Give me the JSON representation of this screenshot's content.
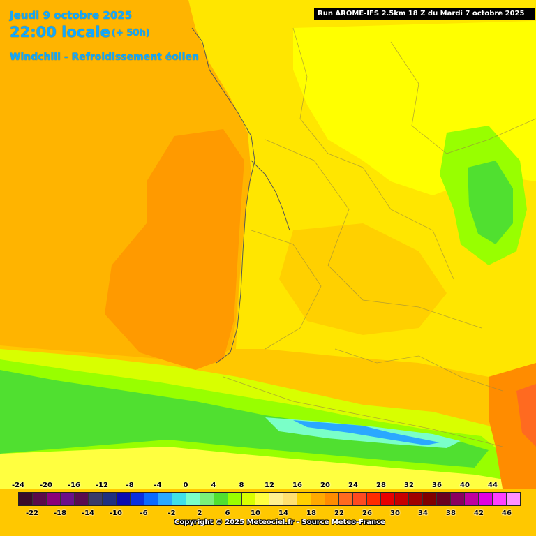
{
  "header": {
    "date": "Jeudi 9 octobre 2025",
    "time": "22:00 locale",
    "offset": "(+ 50h)",
    "parameter": "Windchill - Refroidissement éolien"
  },
  "run_info": "Run AROME-IFS 2.5km 18 Z du Mardi 7 octobre 2025",
  "legend": {
    "ticks_top": [
      "-24",
      "-20",
      "-16",
      "-12",
      "-8",
      "-4",
      "0",
      "4",
      "8",
      "12",
      "16",
      "20",
      "24",
      "28",
      "32",
      "36",
      "40",
      "44"
    ],
    "ticks_bottom": [
      "-22",
      "-18",
      "-14",
      "-10",
      "-6",
      "-2",
      "2",
      "6",
      "10",
      "14",
      "18",
      "22",
      "26",
      "30",
      "34",
      "38",
      "42",
      "46"
    ],
    "colors": [
      "#3a0a2a",
      "#5a0a4a",
      "#8a007a",
      "#6a108a",
      "#5a0c50",
      "#3a3a6a",
      "#203080",
      "#0a0ab0",
      "#0a30e0",
      "#0a6aff",
      "#2aa8ff",
      "#40e0e8",
      "#7affc8",
      "#7af07a",
      "#50e030",
      "#98ff00",
      "#d8ff00",
      "#ffff40",
      "#fff090",
      "#ffe070",
      "#ffd000",
      "#ffaa00",
      "#ff8c00",
      "#ff6a20",
      "#ff4a20",
      "#ff2a00",
      "#e80000",
      "#c80000",
      "#a00000",
      "#800000",
      "#6a0020",
      "#8a0060",
      "#c000a0",
      "#e000e0",
      "#ff40ff",
      "#ff90ff"
    ]
  },
  "copyright": "Copyright © 2025 Meteociel.fr - Source Meteo-France"
}
